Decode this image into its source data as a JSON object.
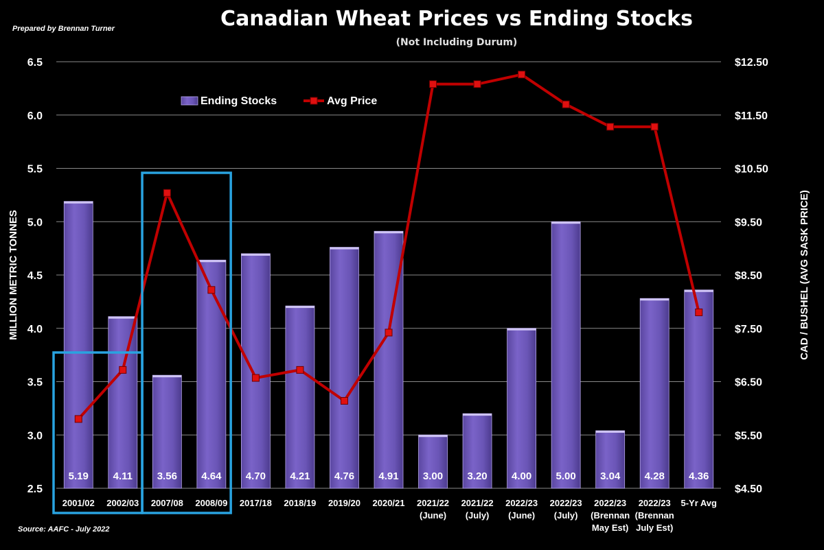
{
  "header": {
    "title": "Canadian Wheat Prices vs Ending Stocks",
    "subtitle": "(Not Including Durum)",
    "credit": "Prepared by Brennan Turner",
    "source": "Source: AAFC -  July 2022"
  },
  "chart_data": {
    "type": "bar+line",
    "categories": [
      [
        "2001/02"
      ],
      [
        "2002/03"
      ],
      [
        "2007/08"
      ],
      [
        "2008/09"
      ],
      [
        "2017/18"
      ],
      [
        "2018/19"
      ],
      [
        "2019/20"
      ],
      [
        "2020/21"
      ],
      [
        "2021/22",
        "(June)"
      ],
      [
        "2021/22",
        "(July)"
      ],
      [
        "2022/23",
        "(June)"
      ],
      [
        "2022/23",
        "(July)"
      ],
      [
        "2022/23",
        "(Brennan",
        "May Est)"
      ],
      [
        "2022/23",
        "(Brennan",
        "July Est)"
      ],
      [
        "5-Yr Avg"
      ]
    ],
    "series": [
      {
        "name": "Ending Stocks",
        "type": "bar",
        "axis": "left",
        "color": "#6a55b0",
        "values": [
          5.19,
          4.11,
          3.56,
          4.64,
          4.7,
          4.21,
          4.76,
          4.91,
          3.0,
          3.2,
          4.0,
          5.0,
          3.04,
          4.28,
          4.36
        ],
        "labels": [
          "5.19",
          "4.11",
          "3.56",
          "4.64",
          "4.70",
          "4.21",
          "4.76",
          "4.91",
          "3.00",
          "3.20",
          "4.00",
          "5.00",
          "3.04",
          "4.28",
          "4.36"
        ]
      },
      {
        "name": "Avg Price",
        "type": "line",
        "axis": "right",
        "color": "#c00000",
        "values": [
          5.8,
          6.72,
          10.04,
          8.22,
          6.57,
          6.72,
          6.14,
          7.42,
          12.08,
          12.08,
          12.26,
          11.7,
          11.28,
          11.28,
          7.8
        ]
      }
    ],
    "y_left": {
      "label": "MILLION METRIC TONNES",
      "range": [
        2.5,
        6.5
      ],
      "ticks": [
        "2.5",
        "3.0",
        "3.5",
        "4.0",
        "4.5",
        "5.0",
        "5.5",
        "6.0",
        "6.5"
      ]
    },
    "y_right": {
      "label": "CAD / BUSHEL (AVG SASK PRICE)",
      "range": [
        4.5,
        12.5
      ],
      "ticks": [
        "$4.50",
        "$5.50",
        "$6.50",
        "$7.50",
        "$8.50",
        "$9.50",
        "$10.50",
        "$11.50",
        "$12.50"
      ]
    },
    "grid": true,
    "legend": "top-left",
    "highlight_boxes": [
      {
        "color": "#29a3e0",
        "from_category": 0,
        "to_category": 1
      },
      {
        "color": "#29a3e0",
        "from_category": 2,
        "to_category": 3
      }
    ]
  }
}
